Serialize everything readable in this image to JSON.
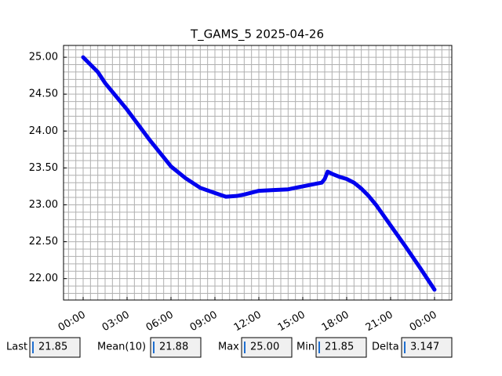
{
  "chart_data": {
    "type": "line",
    "title": "T_GAMS_5 2025-04-26",
    "x": [
      0,
      1,
      1.5,
      3,
      4.5,
      6,
      7,
      8,
      9,
      9.75,
      10.5,
      11,
      12,
      13,
      14,
      15,
      16,
      16.3,
      16.5,
      16.7,
      17,
      17.5,
      18,
      18.5,
      19,
      19.5,
      20,
      21,
      22,
      23,
      24
    ],
    "series": [
      {
        "color": "#0000ee",
        "values": [
          25.0,
          24.8,
          24.65,
          24.29,
          23.89,
          23.52,
          23.36,
          23.23,
          23.16,
          23.11,
          23.12,
          23.14,
          23.19,
          23.2,
          23.21,
          23.25,
          23.29,
          23.3,
          23.35,
          23.45,
          23.42,
          23.38,
          23.35,
          23.3,
          23.22,
          23.12,
          23.0,
          22.72,
          22.44,
          22.15,
          21.85
        ]
      }
    ],
    "xlim": [
      -1.34,
      25.18
    ],
    "xticks": [
      {
        "value": 0,
        "label": "00:00"
      },
      {
        "value": 3,
        "label": "03:00"
      },
      {
        "value": 6,
        "label": "06:00"
      },
      {
        "value": 9,
        "label": "09:00"
      },
      {
        "value": 12,
        "label": "12:00"
      },
      {
        "value": 15,
        "label": "15:00"
      },
      {
        "value": 18,
        "label": "18:00"
      },
      {
        "value": 21,
        "label": "21:00"
      },
      {
        "value": 24,
        "label": "00:00"
      }
    ],
    "ylim": [
      21.71,
      25.16
    ],
    "yticks": [
      {
        "value": 22,
        "label": "22.00"
      },
      {
        "value": 22.5,
        "label": "22.50"
      },
      {
        "value": 23,
        "label": "23.00"
      },
      {
        "value": 23.5,
        "label": "23.50"
      },
      {
        "value": 24,
        "label": "24.00"
      },
      {
        "value": 24.5,
        "label": "24.50"
      },
      {
        "value": 25,
        "label": "25.00"
      }
    ],
    "grid": true,
    "x_minor_step": 0.5,
    "y_minor_step": 0.1
  },
  "stats": [
    {
      "label": "Last",
      "value": "21.85"
    },
    {
      "label": "Mean(10)",
      "value": "21.88"
    },
    {
      "label": "Max",
      "value": "25.00"
    },
    {
      "label": "Min",
      "value": "21.85"
    },
    {
      "label": "Delta",
      "value": "3.147"
    }
  ]
}
